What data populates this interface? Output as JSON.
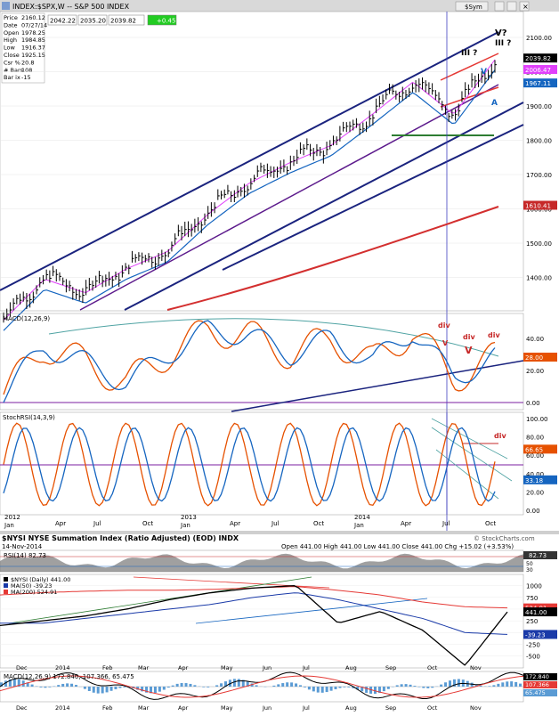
{
  "upper": {
    "title": "INDEX:$SPX,W -- S&P 500 INDEX",
    "toolbar_btn": "$Sym",
    "quote_fields": [
      "2042.22",
      "2035.20",
      "2039.82",
      "+0.45"
    ],
    "info_labels": [
      "Price",
      "Date",
      "Open",
      "High",
      "Low",
      "Close",
      "Csr %",
      "# Bars",
      "Bar ix"
    ],
    "info_values": [
      "2160.12",
      "07/27/14",
      "1978.25",
      "1984.85",
      "1916.37",
      "1925.15",
      "20.8",
      "108",
      "-15"
    ],
    "price_axis": [
      "2100.00",
      "2000.00",
      "1900.00",
      "1800.00",
      "1700.00",
      "1600.00",
      "1500.00",
      "1400.00"
    ],
    "price_tags": [
      "2039.82",
      "2006.47",
      "1967.11",
      "1610.41"
    ],
    "annotations": [
      "V?",
      "III ?",
      "III ?",
      "V",
      "A",
      "div",
      "div",
      "div",
      "V",
      "V",
      "div"
    ],
    "macd_label": "MACD(12,26,9)",
    "macd_axis": [
      "40.00",
      "20.00",
      "0.00"
    ],
    "macd_tag": "28.00",
    "stoch_label": "StochRSI(14,3,9)",
    "stoch_axis": [
      "100.00",
      "80.00",
      "60.00",
      "40.00",
      "20.00",
      "0.00"
    ],
    "stoch_tags": [
      "66.65",
      "33.18"
    ],
    "x_axis_months": [
      "Apr",
      "Jul",
      "Oct",
      "Apr",
      "Jul",
      "Oct",
      "Apr",
      "Jul",
      "Oct"
    ],
    "x_axis_2012": [
      "2012",
      "Jan"
    ],
    "x_axis_2013": [
      "2013",
      "Jan"
    ],
    "x_axis_2014": [
      "2014",
      "Jan"
    ]
  },
  "lower": {
    "title": "$NYSI NYSE Summation Index (Ratio Adjusted) (EOD) INDX",
    "watermark": "© StockCharts.com",
    "date": "14-Nov-2014",
    "ohlc": "Open 441.00 High 441.00 Low 441.00 Close 441.00 Chg +15.02 (+3.53%)",
    "rsi_label": "RSI(14) 82.73",
    "rsi_tag": "82.73",
    "rsi_axis": [
      "70",
      "50",
      "30"
    ],
    "legend": [
      "$NYSI (Daily) 441.00",
      "MA(50) -39.23",
      "MA(200) 524.91"
    ],
    "main_axis": [
      "1000",
      "750",
      "500",
      "250",
      "0",
      "-250",
      "-500"
    ],
    "main_tags": [
      "524.91",
      "441.00",
      "-39.23"
    ],
    "macd_label": "MACD(12,26,9) 172.840, 107.366, 65.475",
    "macd_axis": [
      "200",
      "0",
      "-200"
    ],
    "macd_tags": [
      "172.840",
      "107.366",
      "65.475"
    ],
    "x_axis": [
      "Dec",
      "2014",
      "Feb",
      "Mar",
      "Apr",
      "May",
      "Jun",
      "Jul",
      "Aug",
      "Sep",
      "Oct",
      "Nov"
    ]
  },
  "chart_data": [
    {
      "type": "line",
      "title": "INDEX:$SPX,W -- S&P 500 INDEX",
      "panel": "price (weekly bars)",
      "x": [
        "2012-01",
        "2012-04",
        "2012-07",
        "2012-10",
        "2013-01",
        "2013-04",
        "2013-07",
        "2013-10",
        "2014-01",
        "2014-04",
        "2014-07",
        "2014-10",
        "2014-11"
      ],
      "series": [
        {
          "name": "",
          "values": [
            1280,
            1400,
            1360,
            1430,
            1480,
            1590,
            1680,
            1740,
            1790,
            1880,
            1975,
            1880,
            2040
          ]
        }
      ],
      "price_tags": [
        2039.82,
        2006.47,
        1967.11,
        1610.41
      ],
      "ylim": [
        1330,
        2180
      ]
    },
    {
      "type": "line",
      "title": "MACD(12,26,9)",
      "x": [
        "2012-01",
        "2012-04",
        "2012-07",
        "2012-10",
        "2013-01",
        "2013-04",
        "2013-07",
        "2013-10",
        "2014-01",
        "2014-04",
        "2014-07",
        "2014-10",
        "2014-11"
      ],
      "series": [
        {
          "name": "",
          "values": [
            5,
            35,
            25,
            12,
            30,
            45,
            42,
            30,
            40,
            25,
            45,
            15,
            28
          ]
        }
      ],
      "ylim": [
        -5,
        60
      ]
    },
    {
      "type": "line",
      "title": "StochRSI(14,3,9)",
      "x": [
        "2012-01",
        "2012-04",
        "2012-07",
        "2012-10",
        "2013-01",
        "2013-04",
        "2013-07",
        "2013-10",
        "2014-01",
        "2014-04",
        "2014-07",
        "2014-10",
        "2014-11"
      ],
      "series": [
        {
          "name": "",
          "values": [
            80,
            90,
            20,
            30,
            95,
            80,
            50,
            25,
            90,
            40,
            90,
            5,
            66.65
          ]
        }
      ],
      "ylim": [
        0,
        100
      ]
    },
    {
      "type": "line",
      "title": "$NYSI NYSE Summation Index (Ratio Adjusted) (EOD) INDX",
      "x": [
        "Dec",
        "2014",
        "Feb",
        "Mar",
        "Apr",
        "May",
        "Jun",
        "Jul",
        "Aug",
        "Sep",
        "Oct",
        "Nov",
        "Nov-14"
      ],
      "series": [
        {
          "name": "$NYSI (Daily) 441.00",
          "values": [
            150,
            250,
            350,
            500,
            700,
            850,
            950,
            1000,
            200,
            450,
            50,
            -700,
            441
          ]
        },
        {
          "name": "MA(50) -39.23",
          "values": [
            200,
            200,
            300,
            400,
            500,
            600,
            750,
            850,
            700,
            500,
            300,
            0,
            -39.23
          ]
        },
        {
          "name": "MA(200) 524.91",
          "values": [
            800,
            850,
            880,
            900,
            900,
            920,
            950,
            980,
            900,
            800,
            650,
            550,
            524.91
          ]
        }
      ],
      "ylim": [
        -600,
        1200
      ]
    }
  ]
}
